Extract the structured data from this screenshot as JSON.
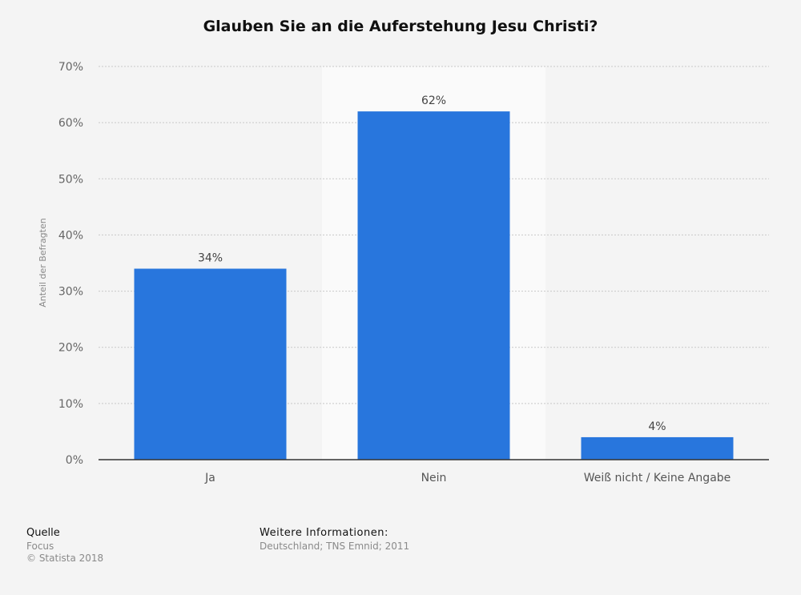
{
  "chart_data": {
    "type": "bar",
    "title": "Glauben Sie an die Auferstehung Jesu Christi?",
    "categories": [
      "Ja",
      "Nein",
      "Weiß nicht / Keine Angabe"
    ],
    "values": [
      34,
      62,
      4
    ],
    "data_labels": [
      "34%",
      "62%",
      "4%"
    ],
    "xlabel": "",
    "ylabel": "Anteil der Befragten",
    "ylim": [
      0,
      70
    ],
    "yticks": [
      "0%",
      "10%",
      "20%",
      "30%",
      "40%",
      "50%",
      "60%",
      "70%"
    ],
    "grid": true,
    "highlighted_category": "Nein",
    "bar_color": "#2876dd"
  },
  "footer": {
    "source_label": "Quelle",
    "source": "Focus",
    "copyright": "© Statista 2018",
    "info_label": "Weitere Informationen:",
    "info": "Deutschland; TNS Emnid; 2011"
  }
}
